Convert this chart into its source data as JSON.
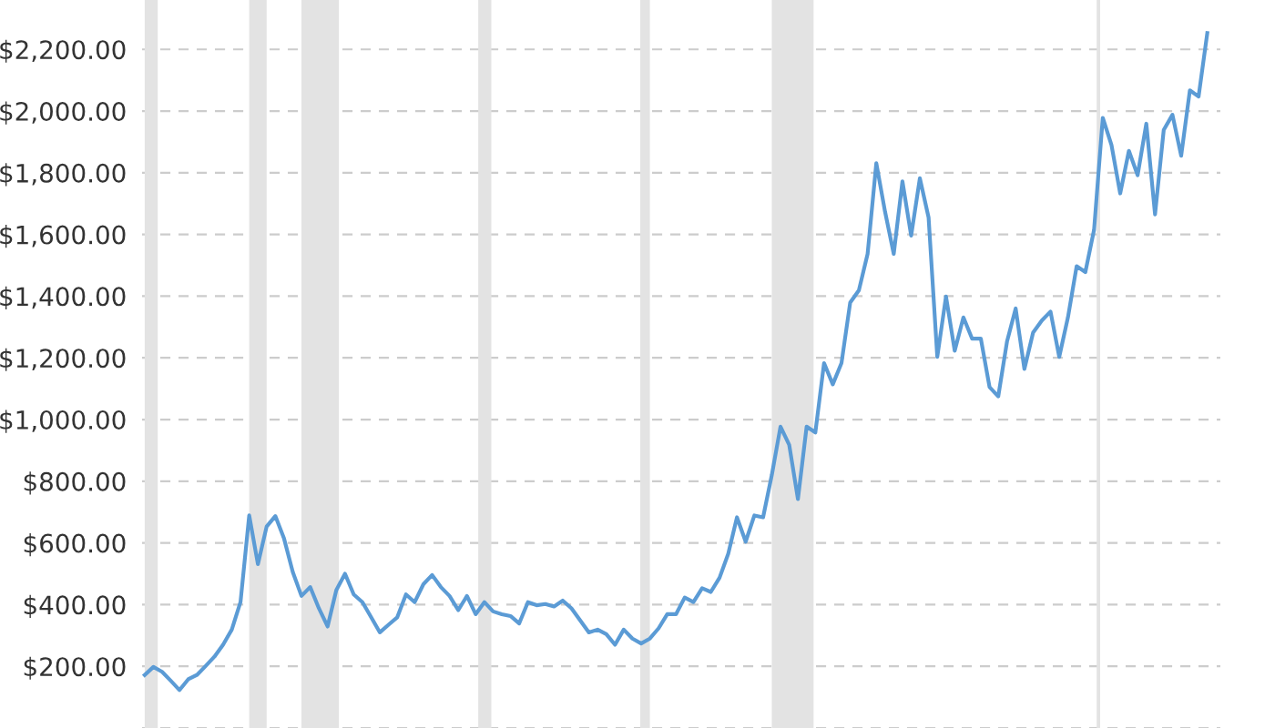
{
  "chart_data": {
    "type": "line",
    "categories": [
      null,
      null,
      null,
      null,
      null,
      null,
      null,
      null,
      null,
      null,
      null,
      null,
      null,
      null,
      null,
      null,
      null,
      null,
      null,
      null,
      null,
      null,
      null,
      null,
      null,
      null,
      null,
      null,
      null,
      null,
      null,
      null,
      null,
      null,
      null,
      null,
      null,
      null,
      null,
      null,
      null,
      null,
      null,
      null,
      null,
      null,
      null,
      null,
      null,
      null,
      null,
      null,
      null,
      null,
      null,
      null,
      null,
      null,
      null,
      null,
      null,
      null,
      null,
      null,
      null,
      null,
      null,
      null,
      null,
      null,
      null,
      null,
      null,
      null,
      null,
      null,
      null,
      null,
      null,
      null,
      null,
      null,
      null,
      null,
      null,
      null,
      null,
      null,
      null,
      null,
      null,
      null,
      null,
      null,
      null,
      null,
      null,
      null,
      null,
      null,
      null,
      null,
      null,
      null,
      null,
      null,
      null,
      null,
      null,
      null,
      null,
      null,
      null,
      null,
      null,
      null,
      null,
      null,
      null,
      null,
      null,
      null,
      null
    ],
    "series": [
      {
        "color": "#5b9bd5",
        "values": [
          172,
          198,
          182,
          153,
          123,
          158,
          172,
          201,
          231,
          270,
          319,
          408,
          689,
          531,
          653,
          687,
          614,
          506,
          428,
          457,
          388,
          329,
          447,
          500,
          433,
          408,
          359,
          310,
          335,
          359,
          433,
          408,
          466,
          496,
          457,
          428,
          382,
          428,
          369,
          408,
          378,
          369,
          363,
          339,
          408,
          398,
          402,
          394,
          413,
          388,
          349,
          310,
          319,
          304,
          270,
          319,
          290,
          274,
          290,
          323,
          369,
          369,
          423,
          408,
          453,
          441,
          487,
          565,
          683,
          604,
          689,
          683,
          820,
          977,
          918,
          742,
          977,
          958,
          1183,
          1114,
          1183,
          1379,
          1419,
          1537,
          1831,
          1674,
          1537,
          1772,
          1596,
          1782,
          1655,
          1203,
          1399,
          1223,
          1331,
          1262,
          1262,
          1105,
          1075,
          1252,
          1360,
          1164,
          1282,
          1321,
          1350,
          1203,
          1331,
          1497,
          1478,
          1615,
          1978,
          1890,
          1733,
          1871,
          1792,
          1959,
          1665,
          1939,
          1988,
          1855,
          2067,
          2047,
          2253
        ]
      }
    ],
    "ylim": [
      0,
      2360
    ],
    "yticks": [
      {
        "value": 0,
        "label": null
      },
      {
        "value": 200,
        "label": "$200.00"
      },
      {
        "value": 400,
        "label": "$400.00"
      },
      {
        "value": 600,
        "label": "$600.00"
      },
      {
        "value": 800,
        "label": "$800.00"
      },
      {
        "value": 1000,
        "label": "$1,000.00"
      },
      {
        "value": 1200,
        "label": "$1,200.00"
      },
      {
        "value": 1400,
        "label": "$1,400.00"
      },
      {
        "value": 1600,
        "label": "$1,600.00"
      },
      {
        "value": 1800,
        "label": "$1,800.00"
      },
      {
        "value": 2000,
        "label": "$2,000.00"
      },
      {
        "value": 2200,
        "label": "$2,200.00"
      }
    ],
    "tick_labels": "y",
    "grid": "y",
    "line_style": "solid"
  }
}
